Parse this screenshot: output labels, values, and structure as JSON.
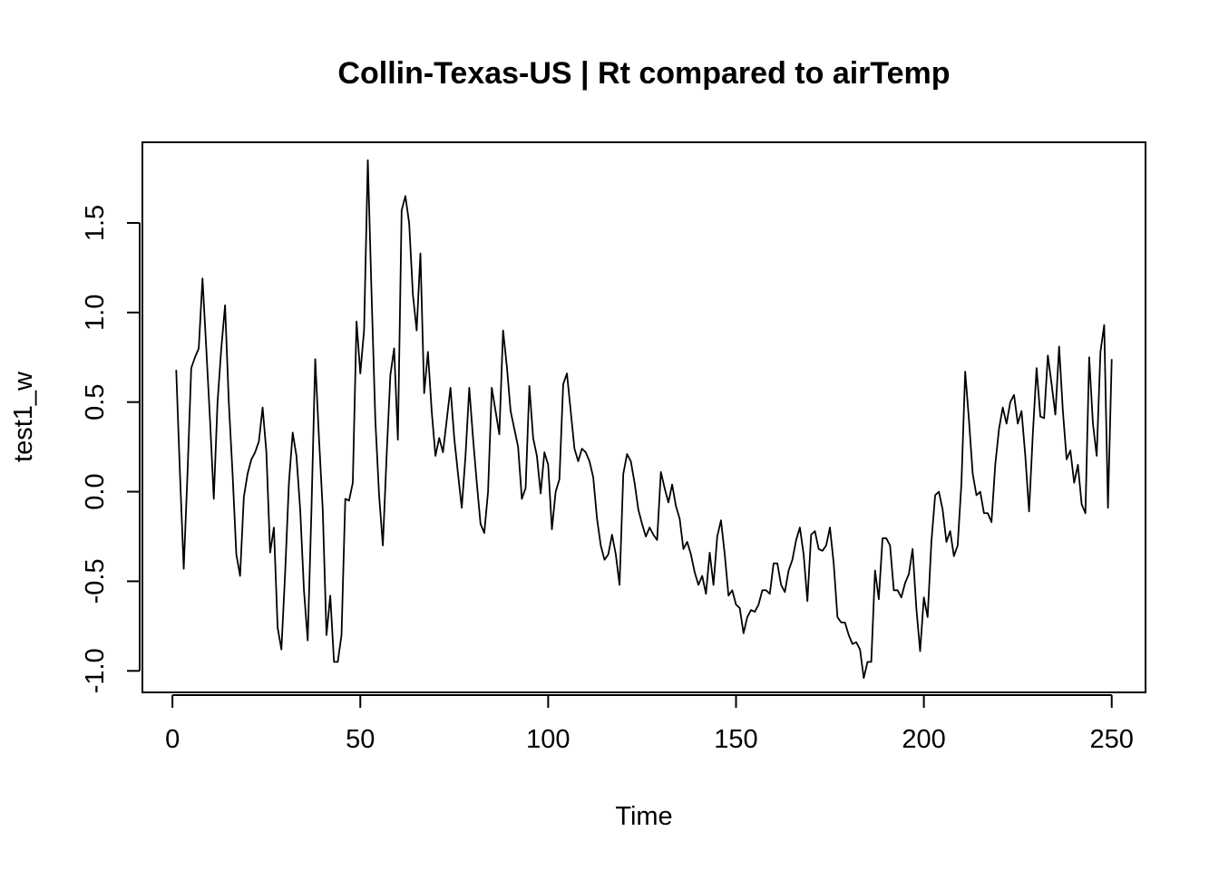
{
  "chart_data": {
    "type": "line",
    "title": "Collin-Texas-US | Rt compared to airTemp",
    "xlabel": "Time",
    "ylabel": "test1_w",
    "xlim": [
      -8,
      259
    ],
    "ylim": [
      -1.12,
      1.95
    ],
    "x_ticks": [
      0,
      50,
      100,
      150,
      200,
      250
    ],
    "x_tick_labels": [
      "0",
      "50",
      "100",
      "150",
      "200",
      "250"
    ],
    "y_ticks": [
      -1.0,
      -0.5,
      0.0,
      0.5,
      1.0,
      1.5
    ],
    "y_tick_labels": [
      "-1.0",
      "-0.5",
      "0.0",
      "0.5",
      "1.0",
      "1.5"
    ],
    "grid": false,
    "series": [
      {
        "x_start": 1,
        "x_step": 1,
        "values": [
          0.68,
          0.1,
          -0.43,
          0.1,
          0.69,
          0.75,
          0.8,
          1.19,
          0.8,
          0.4,
          -0.04,
          0.5,
          0.8,
          1.04,
          0.5,
          0.1,
          -0.35,
          -0.47,
          -0.03,
          0.1,
          0.18,
          0.22,
          0.28,
          0.47,
          0.22,
          -0.34,
          -0.2,
          -0.76,
          -0.88,
          -0.45,
          0.05,
          0.33,
          0.2,
          -0.1,
          -0.55,
          -0.83,
          -0.1,
          0.74,
          0.3,
          -0.1,
          -0.8,
          -0.58,
          -0.95,
          -0.95,
          -0.8,
          -0.04,
          -0.05,
          0.05,
          0.95,
          0.66,
          0.9,
          1.85,
          1.1,
          0.4,
          -0.02,
          -0.3,
          0.2,
          0.65,
          0.8,
          0.29,
          1.57,
          1.65,
          1.5,
          1.1,
          0.9,
          1.33,
          0.55,
          0.78,
          0.45,
          0.2,
          0.3,
          0.22,
          0.4,
          0.58,
          0.3,
          0.1,
          -0.09,
          0.2,
          0.58,
          0.3,
          0.05,
          -0.18,
          -0.23,
          0.0,
          0.58,
          0.45,
          0.32,
          0.9,
          0.7,
          0.45,
          0.35,
          0.25,
          -0.04,
          0.02,
          0.59,
          0.3,
          0.2,
          -0.01,
          0.22,
          0.15,
          -0.21,
          0.0,
          0.07,
          0.6,
          0.66,
          0.45,
          0.24,
          0.17,
          0.24,
          0.22,
          0.17,
          0.08,
          -0.15,
          -0.3,
          -0.38,
          -0.35,
          -0.24,
          -0.35,
          -0.52,
          0.1,
          0.21,
          0.17,
          0.05,
          -0.1,
          -0.18,
          -0.25,
          -0.2,
          -0.24,
          -0.27,
          0.11,
          0.02,
          -0.06,
          0.04,
          -0.08,
          -0.15,
          -0.32,
          -0.28,
          -0.35,
          -0.45,
          -0.52,
          -0.47,
          -0.57,
          -0.34,
          -0.52,
          -0.25,
          -0.16,
          -0.35,
          -0.58,
          -0.55,
          -0.63,
          -0.65,
          -0.79,
          -0.7,
          -0.66,
          -0.67,
          -0.63,
          -0.55,
          -0.55,
          -0.57,
          -0.4,
          -0.4,
          -0.52,
          -0.56,
          -0.44,
          -0.38,
          -0.27,
          -0.2,
          -0.35,
          -0.61,
          -0.24,
          -0.22,
          -0.32,
          -0.33,
          -0.3,
          -0.2,
          -0.4,
          -0.7,
          -0.73,
          -0.73,
          -0.8,
          -0.85,
          -0.84,
          -0.88,
          -1.04,
          -0.95,
          -0.95,
          -0.44,
          -0.6,
          -0.26,
          -0.26,
          -0.3,
          -0.55,
          -0.55,
          -0.59,
          -0.51,
          -0.46,
          -0.32,
          -0.65,
          -0.89,
          -0.59,
          -0.7,
          -0.28,
          -0.02,
          0.0,
          -0.1,
          -0.28,
          -0.22,
          -0.36,
          -0.3,
          0.05,
          0.67,
          0.4,
          0.1,
          -0.02,
          0.0,
          -0.12,
          -0.12,
          -0.17,
          0.15,
          0.35,
          0.47,
          0.38,
          0.5,
          0.54,
          0.38,
          0.45,
          0.2,
          -0.11,
          0.32,
          0.69,
          0.42,
          0.41,
          0.76,
          0.6,
          0.43,
          0.81,
          0.45,
          0.18,
          0.23,
          0.05,
          0.15,
          -0.07,
          -0.12,
          0.75,
          0.38,
          0.2,
          0.78,
          0.93,
          -0.09,
          0.74
        ]
      }
    ]
  }
}
